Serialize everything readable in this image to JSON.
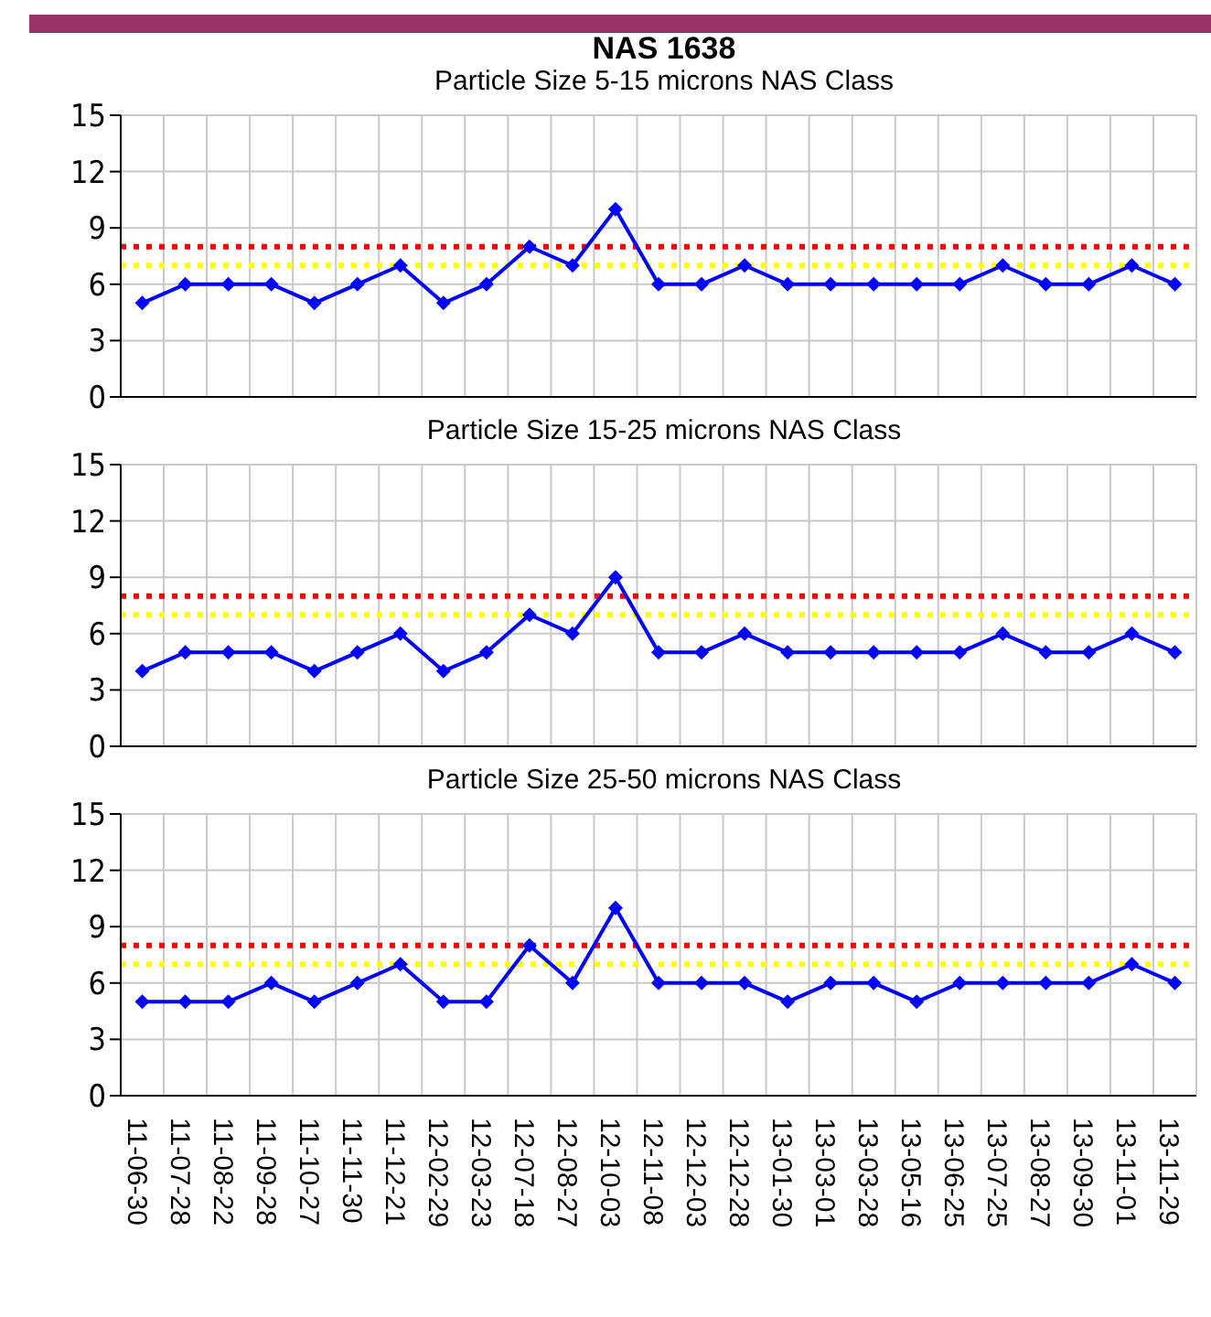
{
  "chart_data": [
    {
      "type": "line",
      "title": "NAS 1638",
      "subtitle": "Particle Size 5-15 microns NAS Class",
      "categories": [
        null,
        null,
        null,
        null,
        null,
        null,
        null,
        null,
        null,
        null,
        null,
        null,
        null,
        null,
        null,
        null,
        null,
        null,
        null,
        null,
        null,
        null,
        null,
        null,
        null
      ],
      "series": [
        {
          "color": "#0000ff",
          "values": [
            5,
            6,
            6,
            6,
            5,
            6,
            7,
            5,
            6,
            8,
            7,
            10,
            6,
            6,
            7,
            6,
            6,
            6,
            6,
            6,
            7,
            6,
            6,
            7,
            6
          ]
        }
      ],
      "ylim": [
        0,
        15
      ],
      "yticks": [
        0,
        3,
        6,
        9,
        12,
        15
      ],
      "grid": true,
      "marker": "diamond",
      "line_style": "solid",
      "tick_labels": "y",
      "ref_lines": [
        {
          "axis": "y",
          "value": 8,
          "color": "#ff0000",
          "line_style": "dotted"
        },
        {
          "axis": "y",
          "value": 7,
          "color": "#ffff00",
          "line_style": "dotted"
        }
      ]
    },
    {
      "type": "line",
      "subtitle": "Particle Size 15-25 microns NAS Class",
      "categories": [
        null,
        null,
        null,
        null,
        null,
        null,
        null,
        null,
        null,
        null,
        null,
        null,
        null,
        null,
        null,
        null,
        null,
        null,
        null,
        null,
        null,
        null,
        null,
        null,
        null
      ],
      "series": [
        {
          "color": "#0000ff",
          "values": [
            4,
            5,
            5,
            5,
            4,
            5,
            6,
            4,
            5,
            7,
            6,
            9,
            5,
            5,
            6,
            5,
            5,
            5,
            5,
            5,
            6,
            5,
            5,
            6,
            5
          ]
        }
      ],
      "ylim": [
        0,
        15
      ],
      "yticks": [
        0,
        3,
        6,
        9,
        12,
        15
      ],
      "grid": true,
      "marker": "diamond",
      "line_style": "solid",
      "tick_labels": "y",
      "ref_lines": [
        {
          "axis": "y",
          "value": 8,
          "color": "#ff0000",
          "line_style": "dotted"
        },
        {
          "axis": "y",
          "value": 7,
          "color": "#ffff00",
          "line_style": "dotted"
        }
      ]
    },
    {
      "type": "line",
      "subtitle": "Particle Size 25-50 microns NAS Class",
      "categories": [
        "11-06-30",
        "11-07-28",
        "11-08-22",
        "11-09-28",
        "11-10-27",
        "11-11-30",
        "11-12-21",
        "12-02-29",
        "12-03-23",
        "12-07-18",
        "12-08-27",
        "12-10-03",
        "12-11-08",
        "12-12-03",
        "12-12-28",
        "13-01-30",
        "13-03-01",
        "13-03-28",
        "13-05-16",
        "13-06-25",
        "13-07-25",
        "13-08-27",
        "13-09-30",
        "13-11-01",
        "13-11-29"
      ],
      "series": [
        {
          "color": "#0000ff",
          "values": [
            5,
            5,
            5,
            6,
            5,
            6,
            7,
            5,
            5,
            8,
            6,
            10,
            6,
            6,
            6,
            5,
            6,
            6,
            5,
            6,
            6,
            6,
            6,
            7,
            6
          ]
        }
      ],
      "ylim": [
        0,
        15
      ],
      "yticks": [
        0,
        3,
        6,
        9,
        12,
        15
      ],
      "grid": true,
      "marker": "diamond",
      "line_style": "solid",
      "ref_lines": [
        {
          "axis": "y",
          "value": 8,
          "color": "#ff0000",
          "line_style": "dotted"
        },
        {
          "axis": "y",
          "value": 7,
          "color": "#ffff00",
          "line_style": "dotted"
        }
      ]
    }
  ]
}
